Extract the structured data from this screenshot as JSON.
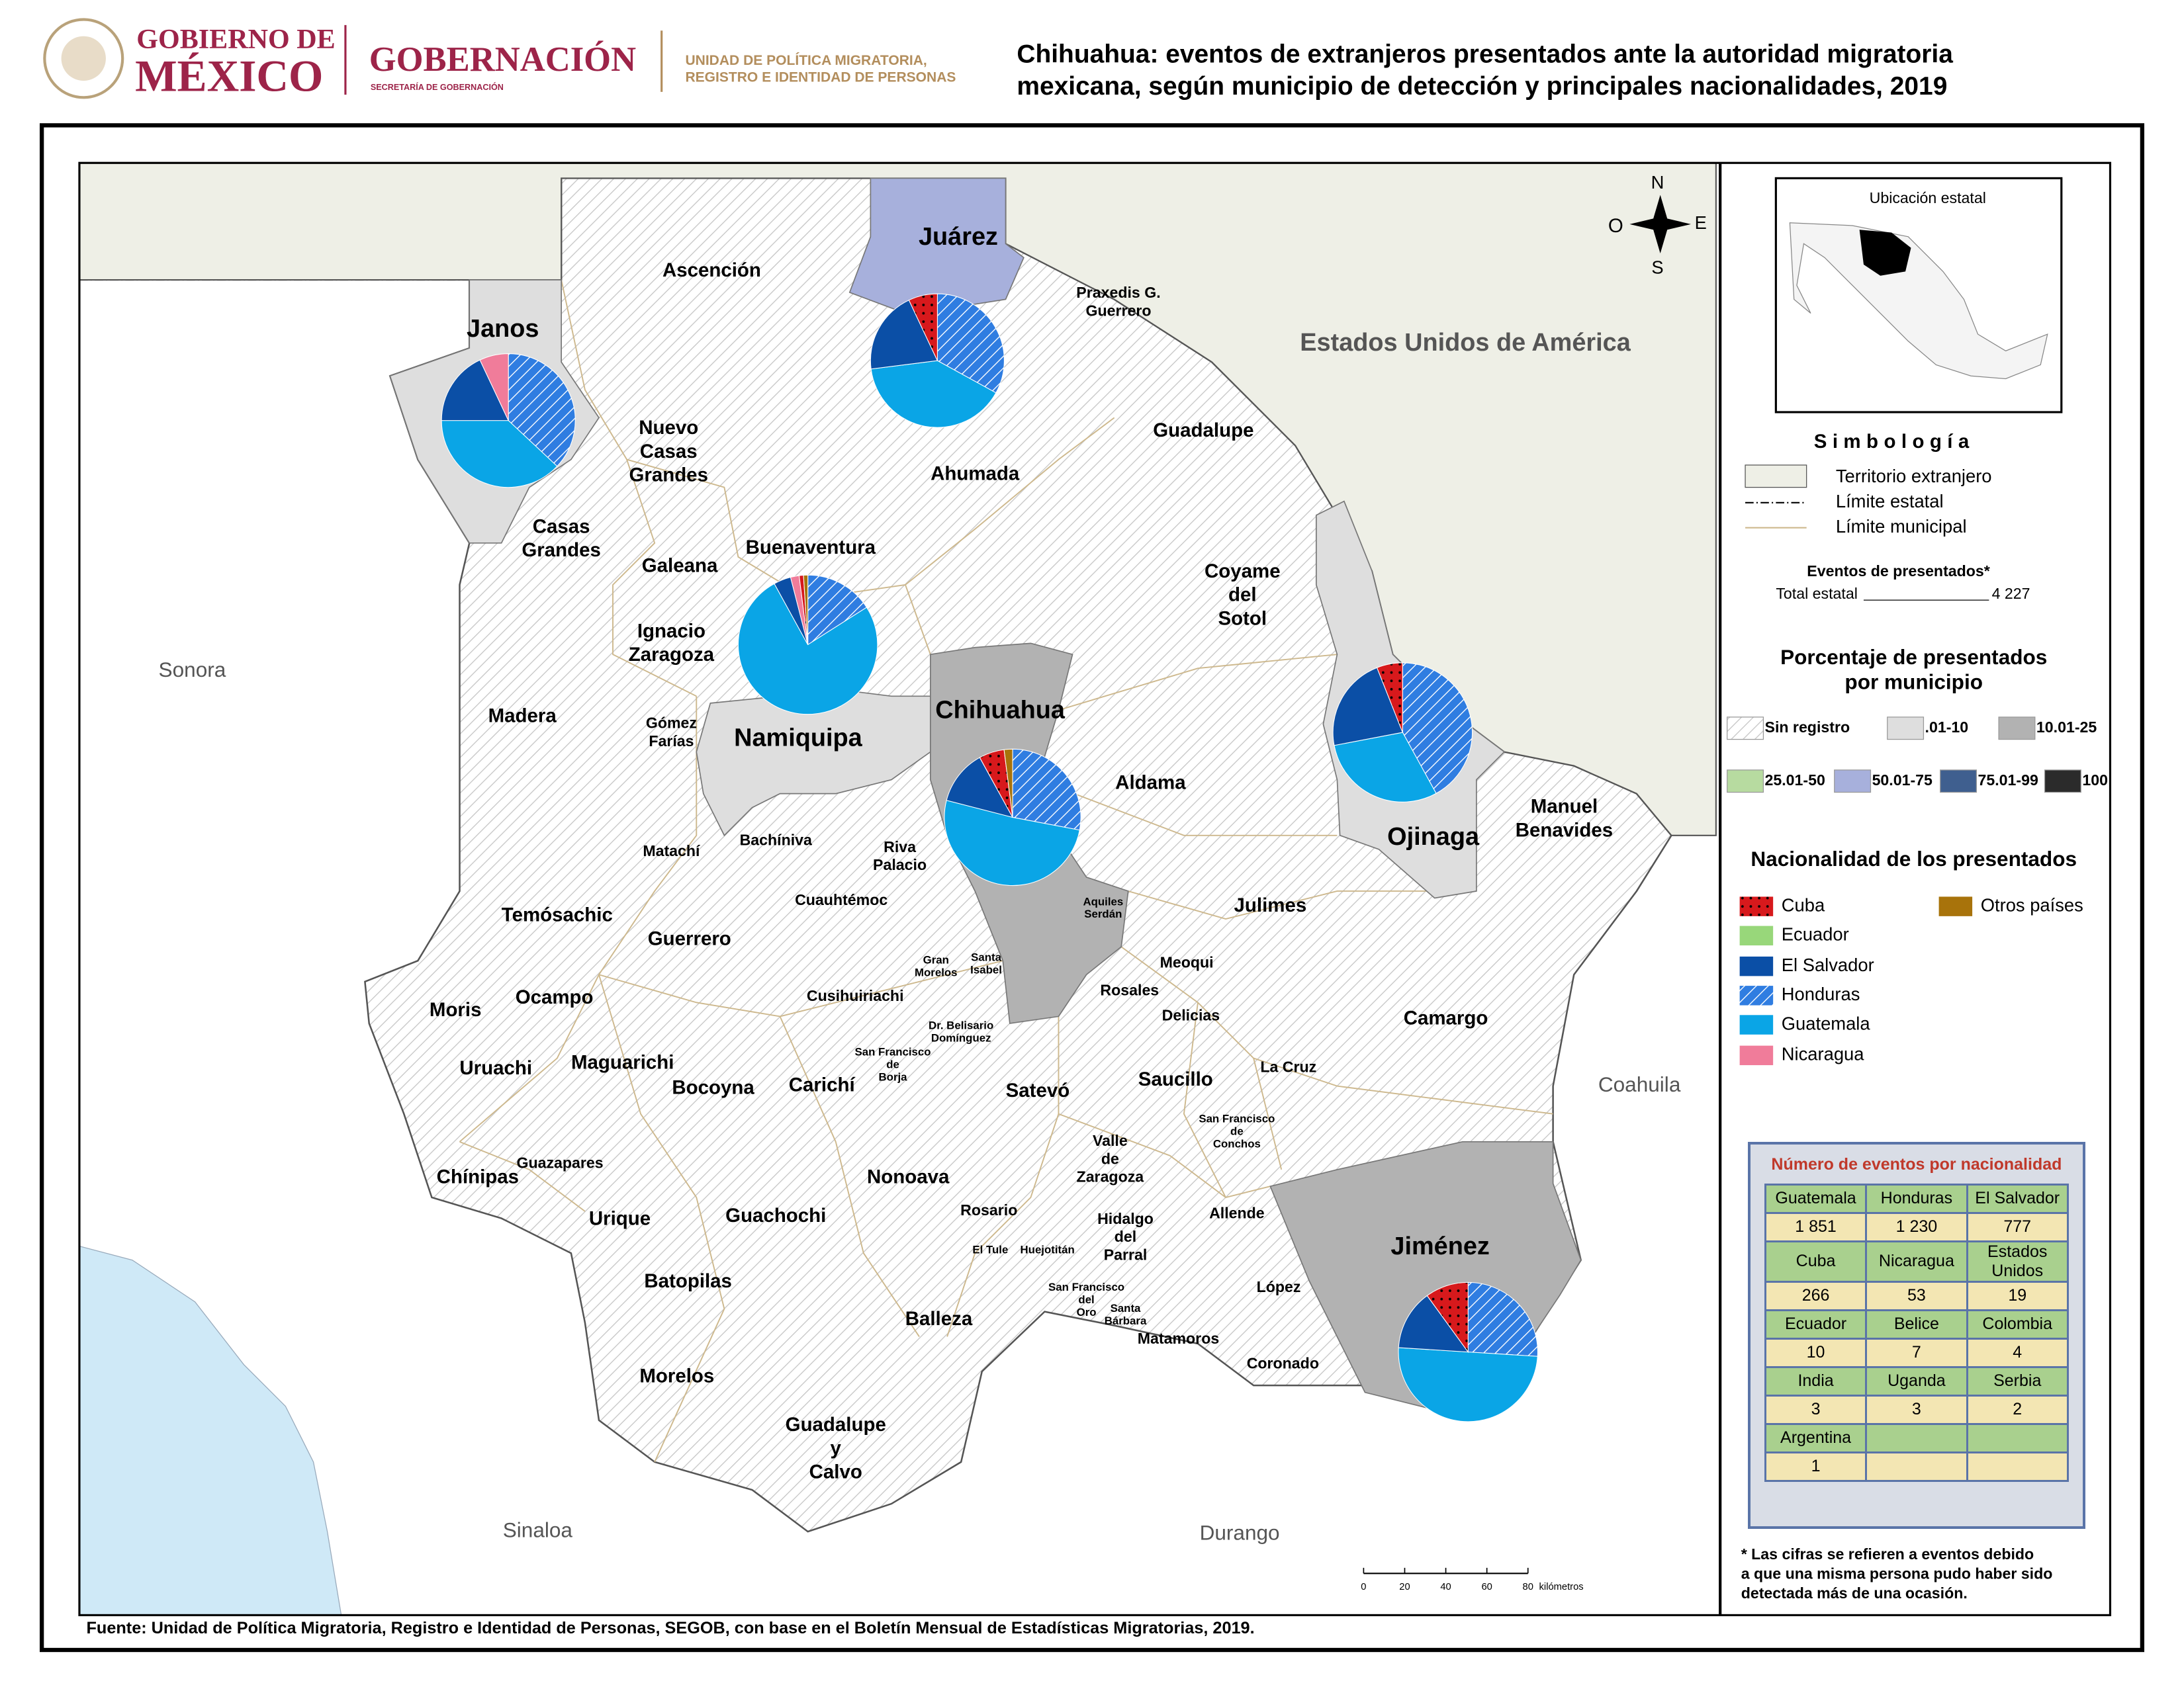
{
  "header": {
    "gob_line1": "GOBIERNO DE",
    "gob_line2": "MÉXICO",
    "secretaria": "GOBERNACIÓN",
    "secretaria_sub": "SECRETARÍA DE GOBERNACIÓN",
    "unidad": [
      "UNIDAD DE POLÍTICA MIGRATORIA,",
      "REGISTRO E IDENTIDAD DE PERSONAS"
    ],
    "title": [
      "Chihuahua: eventos de extranjeros presentados ante la autoridad migratoria",
      "mexicana, según municipio de detección y principales nacionalidades, 2019"
    ]
  },
  "map": {
    "labels": [
      [
        "Sonora"
      ],
      [
        "Sinaloa"
      ],
      [
        "Durango"
      ],
      [
        "Coahuila"
      ],
      [
        "Estados Unidos de América"
      ],
      [
        "Janos"
      ],
      [
        "Juárez"
      ],
      [
        "Namiquipa"
      ],
      [
        "Chihuahua"
      ],
      [
        "Ojinaga"
      ],
      [
        "Jiménez"
      ],
      [
        "Ascención"
      ],
      [
        "Praxedis G.",
        "Guerrero"
      ],
      [
        "Nuevo",
        "Casas",
        "Grandes"
      ],
      [
        "Guadalupe"
      ],
      [
        "Ahumada"
      ],
      [
        "Casas",
        "Grandes"
      ],
      [
        "Galeana"
      ],
      [
        "Buenaventura"
      ],
      [
        "Coyame",
        "del",
        "Sotol"
      ],
      [
        "Ignacio",
        "Zaragoza"
      ],
      [
        "Madera"
      ],
      [
        "Gómez",
        "Farías"
      ],
      [
        "Aldama"
      ],
      [
        "Manuel",
        "Benavides"
      ],
      [
        "Bachíniva"
      ],
      [
        "Matachí"
      ],
      [
        "Riva",
        "Palacio"
      ],
      [
        "Temósachic"
      ],
      [
        "Cuauhtémoc"
      ],
      [
        "Aquiles",
        "Serdán"
      ],
      [
        "Julimes"
      ],
      [
        "Guerrero"
      ],
      [
        "Gran",
        "Morelos"
      ],
      [
        "Santa",
        "Isabel"
      ],
      [
        "Meoqui"
      ],
      [
        "Moris"
      ],
      [
        "Ocampo"
      ],
      [
        "Rosales"
      ],
      [
        "Cusihuiriachi"
      ],
      [
        "Camargo"
      ],
      [
        "Delicias"
      ],
      [
        "Dr. Belisario",
        "Domínguez"
      ],
      [
        "Uruachi"
      ],
      [
        "Maguarichi"
      ],
      [
        "San Francisco",
        "de",
        "Borja"
      ],
      [
        "Saucillo"
      ],
      [
        "La Cruz"
      ],
      [
        "Bocoyna"
      ],
      [
        "Carichí"
      ],
      [
        "Satevó"
      ],
      [
        "San Francisco",
        "de",
        "Conchos"
      ],
      [
        "Valle",
        "de",
        "Zaragoza"
      ],
      [
        "Chínipas"
      ],
      [
        "Guazapares"
      ],
      [
        "Nonoava"
      ],
      [
        "Urique"
      ],
      [
        "Guachochi"
      ],
      [
        "Rosario"
      ],
      [
        "Allende"
      ],
      [
        "Hidalgo",
        "del",
        "Parral"
      ],
      [
        "El Tule"
      ],
      [
        "Huejotitán"
      ],
      [
        "Batopilas"
      ],
      [
        "López"
      ],
      [
        "San Francisco",
        "del",
        "Oro"
      ],
      [
        "Santa",
        "Bárbara"
      ],
      [
        "Balleza"
      ],
      [
        "Matamoros"
      ],
      [
        "Morelos"
      ],
      [
        "Coronado"
      ],
      [
        "Guadalupe",
        "y",
        "Calvo"
      ]
    ],
    "compass": {
      "n": "N",
      "s": "S",
      "e": "E",
      "o": "O"
    },
    "scale_bar": {
      "ticks": [
        0,
        20,
        40,
        60,
        80
      ],
      "unit": "kilómetros"
    },
    "pies": [
      {
        "values": [
          0,
          0,
          18,
          37,
          38,
          7,
          0
        ]
      },
      {
        "values": [
          7,
          0,
          20,
          33,
          40,
          0,
          0
        ]
      },
      {
        "values": [
          1,
          0,
          4,
          16,
          76,
          2,
          1
        ]
      },
      {
        "values": [
          6,
          0,
          13,
          28,
          51,
          0,
          2
        ]
      },
      {
        "values": [
          6,
          0,
          22,
          42,
          30,
          0,
          0
        ]
      },
      {
        "values": [
          10,
          0,
          14,
          26,
          50,
          0,
          0
        ]
      }
    ]
  },
  "legend": {
    "inset_title": "Ubicación estatal",
    "title": "Simbología",
    "items": [
      "Territorio extranjero",
      "Límite estatal",
      "Límite municipal"
    ],
    "events_title": "Eventos de presentados*",
    "total_label": "Total estatal",
    "total": "4 227",
    "pct_title": [
      "Porcentaje de presentados",
      "por municipio"
    ],
    "classes": [
      {
        "label": "Sin registro",
        "color": "#ffffff",
        "pattern": "hatch"
      },
      {
        "label": ".01-10",
        "color": "#dedede"
      },
      {
        "label": "10.01-25",
        "color": "#b2b2b2"
      },
      {
        "label": "25.01-50",
        "color": "#b7dba0"
      },
      {
        "label": "50.01-75",
        "color": "#a7b0dc"
      },
      {
        "label": "75.01-99",
        "color": "#3f5f8f"
      },
      {
        "label": "100",
        "color": "#2b2b2b"
      }
    ],
    "nat_title": "Nacionalidad de los presentados",
    "nationalities": [
      {
        "name": "Cuba",
        "color": "#d7191c",
        "pattern": "dots"
      },
      {
        "name": "Ecuador",
        "color": "#98d77a"
      },
      {
        "name": "El Salvador",
        "color": "#0b4fa6"
      },
      {
        "name": "Honduras",
        "color": "#2f7de1",
        "pattern": "hatch"
      },
      {
        "name": "Guatemala",
        "color": "#0aa5e6"
      },
      {
        "name": "Nicaragua",
        "color": "#f07c9a"
      },
      {
        "name": "Otros países",
        "color": "#a8730b"
      }
    ]
  },
  "table": {
    "title": "Número de eventos por nacionalidad",
    "rows": [
      [
        "Guatemala",
        "Honduras",
        "El Salvador"
      ],
      [
        "1 851",
        "1 230",
        "777"
      ],
      [
        "Cuba",
        "Nicaragua",
        "Estados Unidos"
      ],
      [
        "266",
        "53",
        "19"
      ],
      [
        "Ecuador",
        "Belice",
        "Colombia"
      ],
      [
        "10",
        "7",
        "4"
      ],
      [
        "India",
        "Uganda",
        "Serbia"
      ],
      [
        "3",
        "3",
        "2"
      ],
      [
        "Argentina"
      ],
      [
        "1"
      ]
    ]
  },
  "footnote": [
    "* Las cifras se refieren a eventos debido",
    "a que una misma persona pudo haber sido",
    "detectada más de una ocasión."
  ],
  "source": "Fuente: Unidad de Política Migratoria, Registro e Identidad de Personas, SEGOB, con base en el Boletín Mensual de Estadísticas Migratorias, 2019."
}
